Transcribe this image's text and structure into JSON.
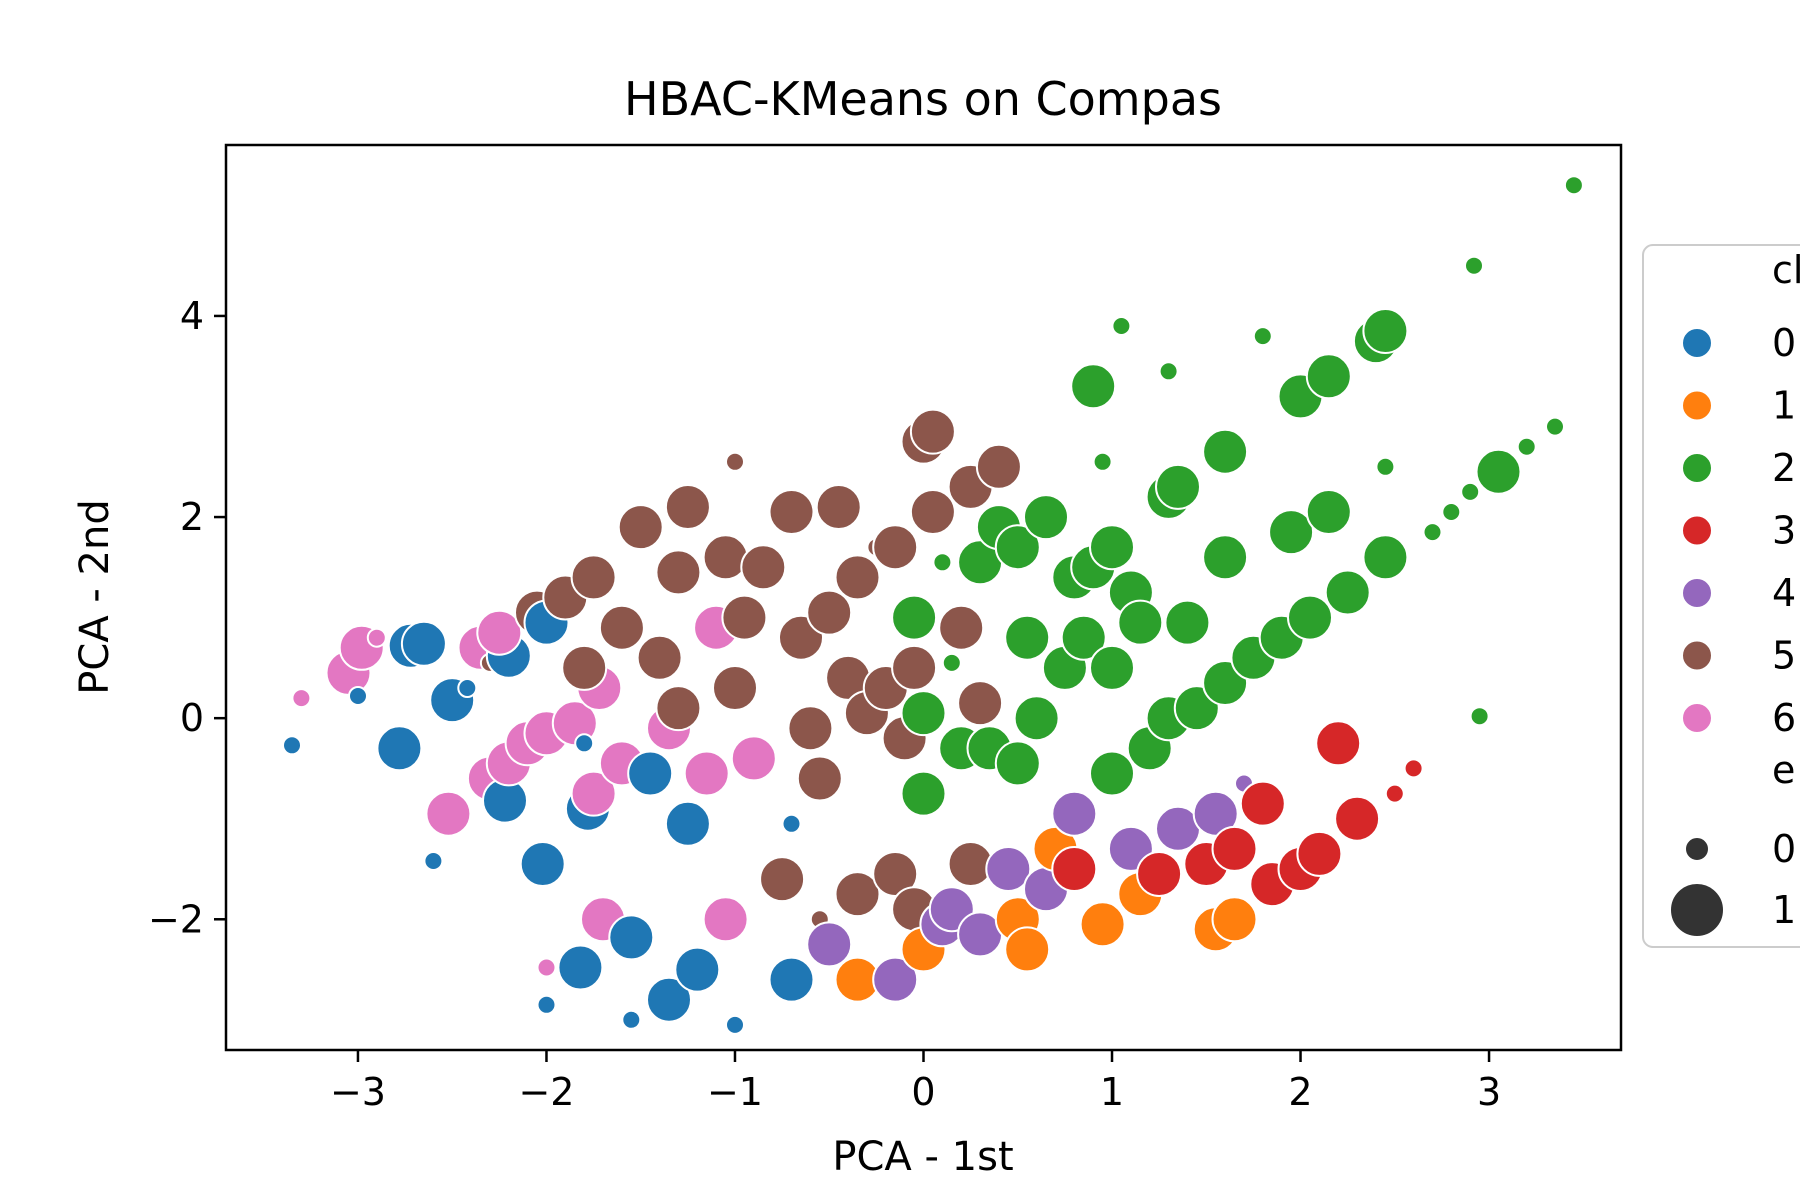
{
  "chart_data": {
    "type": "scatter",
    "title": "HBAC-KMeans on Compas",
    "xlabel": "PCA - 1st",
    "ylabel": "PCA - 2nd",
    "xlim": [
      -3.7,
      3.7
    ],
    "ylim": [
      -3.3,
      5.7
    ],
    "xticks": [
      -3,
      -2,
      -1,
      0,
      1,
      2,
      3
    ],
    "xtick_labels": [
      "−3",
      "−2",
      "−1",
      "0",
      "1",
      "2",
      "3"
    ],
    "yticks": [
      -2,
      0,
      2,
      4
    ],
    "ytick_labels": [
      "−2",
      "0",
      "2",
      "4"
    ],
    "grid": false,
    "legend_placement": "outside-right",
    "legend": {
      "hue_title": "cl",
      "hue_entries": [
        "0",
        "1",
        "2",
        "3",
        "4",
        "5",
        "6"
      ],
      "size_title": "e",
      "size_entries": [
        "0",
        "1"
      ]
    },
    "colors": {
      "0": "#1f77b4",
      "1": "#ff7f0e",
      "2": "#2ca02c",
      "3": "#d62728",
      "4": "#9467bd",
      "5": "#8c564b",
      "6": "#e377c2",
      "size_legend": "#333333"
    },
    "points": [
      {
        "x": -3.35,
        "y": -0.27,
        "c": 0,
        "s": 0
      },
      {
        "x": -3.05,
        "y": 0.45,
        "c": 6,
        "s": 1
      },
      {
        "x": -3.3,
        "y": 0.2,
        "c": 6,
        "s": 0
      },
      {
        "x": -2.98,
        "y": 0.7,
        "c": 6,
        "s": 1
      },
      {
        "x": -2.9,
        "y": 0.8,
        "c": 6,
        "s": 0
      },
      {
        "x": -3.0,
        "y": 0.22,
        "c": 0,
        "s": 0
      },
      {
        "x": -2.72,
        "y": 0.72,
        "c": 0,
        "s": 1
      },
      {
        "x": -2.65,
        "y": 0.74,
        "c": 0,
        "s": 1
      },
      {
        "x": -2.78,
        "y": -0.3,
        "c": 0,
        "s": 1
      },
      {
        "x": -2.6,
        "y": -1.42,
        "c": 0,
        "s": 0
      },
      {
        "x": -2.5,
        "y": 0.18,
        "c": 0,
        "s": 1
      },
      {
        "x": -2.42,
        "y": 0.3,
        "c": 0,
        "s": 0
      },
      {
        "x": -2.52,
        "y": -0.95,
        "c": 6,
        "s": 1
      },
      {
        "x": -2.35,
        "y": 0.7,
        "c": 6,
        "s": 1
      },
      {
        "x": -2.3,
        "y": 0.55,
        "c": 5,
        "s": 0
      },
      {
        "x": -2.2,
        "y": 0.62,
        "c": 0,
        "s": 1
      },
      {
        "x": -2.25,
        "y": 0.85,
        "c": 6,
        "s": 1
      },
      {
        "x": -2.3,
        "y": -0.6,
        "c": 6,
        "s": 1
      },
      {
        "x": -2.22,
        "y": -0.82,
        "c": 0,
        "s": 1
      },
      {
        "x": -2.2,
        "y": -0.45,
        "c": 6,
        "s": 1
      },
      {
        "x": -2.1,
        "y": -0.25,
        "c": 6,
        "s": 1
      },
      {
        "x": -2.05,
        "y": 1.05,
        "c": 5,
        "s": 1
      },
      {
        "x": -2.0,
        "y": 0.95,
        "c": 0,
        "s": 1
      },
      {
        "x": -2.02,
        "y": -1.45,
        "c": 0,
        "s": 1
      },
      {
        "x": -2.0,
        "y": -0.15,
        "c": 6,
        "s": 1
      },
      {
        "x": -2.0,
        "y": -2.85,
        "c": 0,
        "s": 0
      },
      {
        "x": -2.0,
        "y": -2.48,
        "c": 6,
        "s": 0
      },
      {
        "x": -1.9,
        "y": 1.2,
        "c": 5,
        "s": 1
      },
      {
        "x": -1.85,
        "y": -0.05,
        "c": 6,
        "s": 1
      },
      {
        "x": -1.8,
        "y": -0.25,
        "c": 0,
        "s": 0
      },
      {
        "x": -1.75,
        "y": 1.4,
        "c": 5,
        "s": 1
      },
      {
        "x": -1.72,
        "y": 0.3,
        "c": 6,
        "s": 1
      },
      {
        "x": -1.8,
        "y": 0.5,
        "c": 5,
        "s": 1
      },
      {
        "x": -1.78,
        "y": -0.9,
        "c": 0,
        "s": 1
      },
      {
        "x": -1.75,
        "y": -0.75,
        "c": 6,
        "s": 1
      },
      {
        "x": -1.82,
        "y": -2.48,
        "c": 0,
        "s": 1
      },
      {
        "x": -1.7,
        "y": -2.0,
        "c": 6,
        "s": 1
      },
      {
        "x": -1.6,
        "y": 0.9,
        "c": 5,
        "s": 1
      },
      {
        "x": -1.6,
        "y": -0.45,
        "c": 6,
        "s": 1
      },
      {
        "x": -1.55,
        "y": -2.18,
        "c": 0,
        "s": 1
      },
      {
        "x": -1.5,
        "y": 1.9,
        "c": 5,
        "s": 1
      },
      {
        "x": -1.45,
        "y": -0.55,
        "c": 0,
        "s": 1
      },
      {
        "x": -1.55,
        "y": -3.0,
        "c": 0,
        "s": 0
      },
      {
        "x": -1.4,
        "y": 0.6,
        "c": 5,
        "s": 1
      },
      {
        "x": -1.35,
        "y": -2.8,
        "c": 0,
        "s": 1
      },
      {
        "x": -1.35,
        "y": -0.1,
        "c": 6,
        "s": 1
      },
      {
        "x": -1.3,
        "y": 1.45,
        "c": 5,
        "s": 1
      },
      {
        "x": -1.3,
        "y": 0.1,
        "c": 5,
        "s": 1
      },
      {
        "x": -1.25,
        "y": 2.1,
        "c": 5,
        "s": 1
      },
      {
        "x": -1.25,
        "y": -1.05,
        "c": 0,
        "s": 1
      },
      {
        "x": -1.2,
        "y": -2.5,
        "c": 0,
        "s": 1
      },
      {
        "x": -1.15,
        "y": -0.55,
        "c": 6,
        "s": 1
      },
      {
        "x": -1.1,
        "y": 0.9,
        "c": 6,
        "s": 1
      },
      {
        "x": -1.05,
        "y": 1.6,
        "c": 5,
        "s": 1
      },
      {
        "x": -1.05,
        "y": -2.0,
        "c": 6,
        "s": 1
      },
      {
        "x": -1.0,
        "y": 0.3,
        "c": 5,
        "s": 1
      },
      {
        "x": -1.0,
        "y": -3.05,
        "c": 0,
        "s": 0
      },
      {
        "x": -0.95,
        "y": 1.0,
        "c": 5,
        "s": 1
      },
      {
        "x": -0.9,
        "y": -0.4,
        "c": 6,
        "s": 1
      },
      {
        "x": -1.0,
        "y": 2.55,
        "c": 5,
        "s": 0
      },
      {
        "x": -0.85,
        "y": 1.5,
        "c": 5,
        "s": 1
      },
      {
        "x": -0.75,
        "y": -1.6,
        "c": 5,
        "s": 1
      },
      {
        "x": -0.7,
        "y": -2.6,
        "c": 0,
        "s": 1
      },
      {
        "x": -0.7,
        "y": 2.05,
        "c": 5,
        "s": 1
      },
      {
        "x": -0.7,
        "y": -1.05,
        "c": 0,
        "s": 0
      },
      {
        "x": -0.65,
        "y": 0.8,
        "c": 5,
        "s": 1
      },
      {
        "x": -0.6,
        "y": -0.1,
        "c": 5,
        "s": 1
      },
      {
        "x": -0.55,
        "y": -0.6,
        "c": 5,
        "s": 1
      },
      {
        "x": -0.55,
        "y": -2.0,
        "c": 5,
        "s": 0
      },
      {
        "x": -0.5,
        "y": 1.05,
        "c": 5,
        "s": 1
      },
      {
        "x": -0.5,
        "y": -2.25,
        "c": 4,
        "s": 1
      },
      {
        "x": -0.45,
        "y": 2.1,
        "c": 5,
        "s": 1
      },
      {
        "x": -0.4,
        "y": 0.4,
        "c": 5,
        "s": 1
      },
      {
        "x": -0.35,
        "y": 1.4,
        "c": 5,
        "s": 1
      },
      {
        "x": -0.35,
        "y": -2.6,
        "c": 1,
        "s": 1
      },
      {
        "x": -0.35,
        "y": -1.75,
        "c": 5,
        "s": 1
      },
      {
        "x": -0.3,
        "y": 0.05,
        "c": 5,
        "s": 1
      },
      {
        "x": -0.25,
        "y": 1.7,
        "c": 5,
        "s": 0
      },
      {
        "x": -0.2,
        "y": 0.3,
        "c": 5,
        "s": 1
      },
      {
        "x": -0.15,
        "y": 1.7,
        "c": 5,
        "s": 1
      },
      {
        "x": -0.15,
        "y": -1.55,
        "c": 5,
        "s": 1
      },
      {
        "x": -0.15,
        "y": -2.6,
        "c": 4,
        "s": 1
      },
      {
        "x": -0.1,
        "y": -0.2,
        "c": 5,
        "s": 1
      },
      {
        "x": -0.05,
        "y": 0.5,
        "c": 5,
        "s": 1
      },
      {
        "x": -0.05,
        "y": -1.9,
        "c": 5,
        "s": 1
      },
      {
        "x": -0.05,
        "y": 1.0,
        "c": 2,
        "s": 1
      },
      {
        "x": 0.0,
        "y": 2.75,
        "c": 5,
        "s": 1
      },
      {
        "x": 0.05,
        "y": 2.85,
        "c": 5,
        "s": 1
      },
      {
        "x": 0.0,
        "y": -2.3,
        "c": 1,
        "s": 1
      },
      {
        "x": 0.0,
        "y": 0.05,
        "c": 2,
        "s": 1
      },
      {
        "x": 0.0,
        "y": -0.75,
        "c": 2,
        "s": 1
      },
      {
        "x": 0.05,
        "y": 2.05,
        "c": 5,
        "s": 1
      },
      {
        "x": 0.1,
        "y": 1.55,
        "c": 2,
        "s": 0
      },
      {
        "x": 0.1,
        "y": -2.05,
        "c": 4,
        "s": 1
      },
      {
        "x": 0.15,
        "y": -1.9,
        "c": 4,
        "s": 1
      },
      {
        "x": 0.15,
        "y": 0.55,
        "c": 2,
        "s": 0
      },
      {
        "x": 0.2,
        "y": -0.3,
        "c": 2,
        "s": 1
      },
      {
        "x": 0.2,
        "y": 0.9,
        "c": 5,
        "s": 1
      },
      {
        "x": 0.25,
        "y": 2.3,
        "c": 5,
        "s": 1
      },
      {
        "x": 0.25,
        "y": -1.45,
        "c": 5,
        "s": 1
      },
      {
        "x": 0.3,
        "y": 1.55,
        "c": 2,
        "s": 1
      },
      {
        "x": 0.3,
        "y": 0.15,
        "c": 5,
        "s": 1
      },
      {
        "x": 0.3,
        "y": -2.15,
        "c": 4,
        "s": 1
      },
      {
        "x": 0.35,
        "y": -0.3,
        "c": 2,
        "s": 1
      },
      {
        "x": 0.4,
        "y": 2.5,
        "c": 5,
        "s": 1
      },
      {
        "x": 0.4,
        "y": 1.9,
        "c": 2,
        "s": 1
      },
      {
        "x": 0.45,
        "y": -1.5,
        "c": 4,
        "s": 1
      },
      {
        "x": 0.5,
        "y": -2.0,
        "c": 1,
        "s": 1
      },
      {
        "x": 0.5,
        "y": -0.45,
        "c": 2,
        "s": 1
      },
      {
        "x": 0.5,
        "y": 1.7,
        "c": 2,
        "s": 1
      },
      {
        "x": 0.55,
        "y": -2.3,
        "c": 1,
        "s": 1
      },
      {
        "x": 0.55,
        "y": 0.8,
        "c": 2,
        "s": 1
      },
      {
        "x": 0.6,
        "y": 0.0,
        "c": 2,
        "s": 1
      },
      {
        "x": 0.65,
        "y": -1.7,
        "c": 4,
        "s": 1
      },
      {
        "x": 0.65,
        "y": 2.0,
        "c": 2,
        "s": 1
      },
      {
        "x": 0.7,
        "y": -1.3,
        "c": 1,
        "s": 1
      },
      {
        "x": 0.75,
        "y": 0.5,
        "c": 2,
        "s": 1
      },
      {
        "x": 0.8,
        "y": 1.4,
        "c": 2,
        "s": 1
      },
      {
        "x": 0.8,
        "y": -0.95,
        "c": 4,
        "s": 1
      },
      {
        "x": 0.8,
        "y": -1.5,
        "c": 3,
        "s": 1
      },
      {
        "x": 0.85,
        "y": 0.8,
        "c": 2,
        "s": 1
      },
      {
        "x": 0.9,
        "y": 3.3,
        "c": 2,
        "s": 1
      },
      {
        "x": 0.9,
        "y": 1.5,
        "c": 2,
        "s": 1
      },
      {
        "x": 0.95,
        "y": -2.05,
        "c": 1,
        "s": 1
      },
      {
        "x": 0.95,
        "y": 2.55,
        "c": 2,
        "s": 0
      },
      {
        "x": 1.0,
        "y": 0.5,
        "c": 2,
        "s": 1
      },
      {
        "x": 1.0,
        "y": -0.55,
        "c": 2,
        "s": 1
      },
      {
        "x": 1.0,
        "y": 1.7,
        "c": 2,
        "s": 1
      },
      {
        "x": 1.05,
        "y": 3.9,
        "c": 2,
        "s": 0
      },
      {
        "x": 1.1,
        "y": -1.3,
        "c": 4,
        "s": 1
      },
      {
        "x": 1.1,
        "y": 1.25,
        "c": 2,
        "s": 1
      },
      {
        "x": 1.15,
        "y": -1.75,
        "c": 1,
        "s": 1
      },
      {
        "x": 1.15,
        "y": 0.95,
        "c": 2,
        "s": 1
      },
      {
        "x": 1.2,
        "y": -0.3,
        "c": 2,
        "s": 1
      },
      {
        "x": 1.25,
        "y": -1.55,
        "c": 3,
        "s": 1
      },
      {
        "x": 1.3,
        "y": 0.0,
        "c": 2,
        "s": 1
      },
      {
        "x": 1.3,
        "y": 2.2,
        "c": 2,
        "s": 1
      },
      {
        "x": 1.3,
        "y": 3.45,
        "c": 2,
        "s": 0
      },
      {
        "x": 1.35,
        "y": 2.3,
        "c": 2,
        "s": 1
      },
      {
        "x": 1.35,
        "y": -1.1,
        "c": 4,
        "s": 1
      },
      {
        "x": 1.4,
        "y": 0.95,
        "c": 2,
        "s": 1
      },
      {
        "x": 1.45,
        "y": 0.1,
        "c": 2,
        "s": 1
      },
      {
        "x": 1.5,
        "y": -1.45,
        "c": 3,
        "s": 1
      },
      {
        "x": 1.55,
        "y": -2.1,
        "c": 1,
        "s": 1
      },
      {
        "x": 1.55,
        "y": -0.95,
        "c": 4,
        "s": 1
      },
      {
        "x": 1.6,
        "y": 0.35,
        "c": 2,
        "s": 1
      },
      {
        "x": 1.6,
        "y": 1.6,
        "c": 2,
        "s": 1
      },
      {
        "x": 1.6,
        "y": 2.65,
        "c": 2,
        "s": 1
      },
      {
        "x": 1.65,
        "y": -1.3,
        "c": 3,
        "s": 1
      },
      {
        "x": 1.65,
        "y": -2.0,
        "c": 1,
        "s": 1
      },
      {
        "x": 1.7,
        "y": -0.65,
        "c": 4,
        "s": 0
      },
      {
        "x": 1.75,
        "y": 0.6,
        "c": 2,
        "s": 1
      },
      {
        "x": 1.8,
        "y": 3.8,
        "c": 2,
        "s": 0
      },
      {
        "x": 1.8,
        "y": -0.85,
        "c": 3,
        "s": 1
      },
      {
        "x": 1.85,
        "y": -1.65,
        "c": 3,
        "s": 1
      },
      {
        "x": 1.9,
        "y": 0.8,
        "c": 2,
        "s": 1
      },
      {
        "x": 1.95,
        "y": 1.85,
        "c": 2,
        "s": 1
      },
      {
        "x": 2.0,
        "y": 3.2,
        "c": 2,
        "s": 1
      },
      {
        "x": 2.0,
        "y": -1.5,
        "c": 3,
        "s": 1
      },
      {
        "x": 2.05,
        "y": 1.0,
        "c": 2,
        "s": 1
      },
      {
        "x": 2.1,
        "y": -1.35,
        "c": 3,
        "s": 1
      },
      {
        "x": 2.15,
        "y": 3.4,
        "c": 2,
        "s": 1
      },
      {
        "x": 2.15,
        "y": 2.05,
        "c": 2,
        "s": 1
      },
      {
        "x": 2.2,
        "y": -0.25,
        "c": 3,
        "s": 1
      },
      {
        "x": 2.25,
        "y": 1.25,
        "c": 2,
        "s": 1
      },
      {
        "x": 2.3,
        "y": -1.0,
        "c": 3,
        "s": 1
      },
      {
        "x": 2.4,
        "y": 3.75,
        "c": 2,
        "s": 1
      },
      {
        "x": 2.45,
        "y": 3.85,
        "c": 2,
        "s": 1
      },
      {
        "x": 2.45,
        "y": 1.6,
        "c": 2,
        "s": 1
      },
      {
        "x": 2.45,
        "y": 2.5,
        "c": 2,
        "s": 0
      },
      {
        "x": 2.5,
        "y": -0.75,
        "c": 3,
        "s": 0
      },
      {
        "x": 2.6,
        "y": -0.5,
        "c": 3,
        "s": 0
      },
      {
        "x": 2.7,
        "y": 1.85,
        "c": 2,
        "s": 0
      },
      {
        "x": 2.8,
        "y": 2.05,
        "c": 2,
        "s": 0
      },
      {
        "x": 2.9,
        "y": 2.25,
        "c": 2,
        "s": 0
      },
      {
        "x": 2.92,
        "y": 4.5,
        "c": 2,
        "s": 0
      },
      {
        "x": 2.95,
        "y": 0.02,
        "c": 2,
        "s": 0
      },
      {
        "x": 3.05,
        "y": 2.45,
        "c": 2,
        "s": 1
      },
      {
        "x": 3.2,
        "y": 2.7,
        "c": 2,
        "s": 0
      },
      {
        "x": 3.35,
        "y": 2.9,
        "c": 2,
        "s": 0
      },
      {
        "x": 3.45,
        "y": 5.3,
        "c": 2,
        "s": 0
      }
    ]
  }
}
